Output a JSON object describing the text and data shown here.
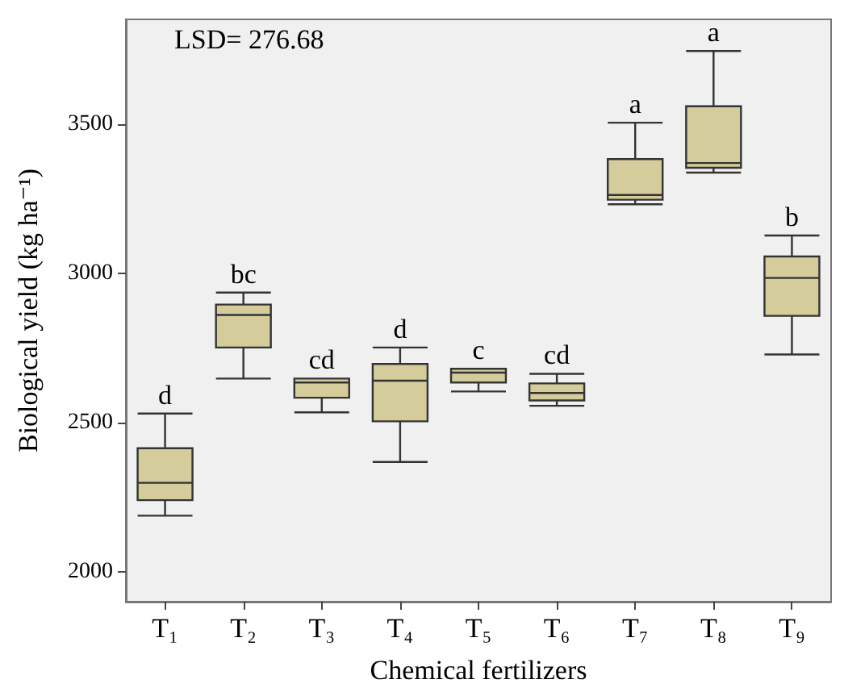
{
  "chart_data": {
    "type": "box",
    "xlabel": "Chemical fertilizers",
    "ylabel": "Biological yield (kg ha⁻¹)",
    "categories": [
      "T₁",
      "T₂",
      "T₃",
      "T₄",
      "T₅",
      "T₆",
      "T₇",
      "T₈",
      "T₉"
    ],
    "color": "#d4cd9b",
    "boxes": [
      {
        "low": 2188,
        "q1": 2240,
        "median": 2298,
        "q3": 2414,
        "high": 2530
      },
      {
        "low": 2647,
        "q1": 2751,
        "median": 2860,
        "q3": 2895,
        "high": 2935
      },
      {
        "low": 2534,
        "q1": 2583,
        "median": 2634,
        "q3": 2647,
        "high": 2647
      },
      {
        "low": 2368,
        "q1": 2504,
        "median": 2640,
        "q3": 2696,
        "high": 2751
      },
      {
        "low": 2604,
        "q1": 2634,
        "median": 2667,
        "q3": 2680,
        "high": 2680
      },
      {
        "low": 2556,
        "q1": 2574,
        "median": 2599,
        "q3": 2631,
        "high": 2663
      },
      {
        "low": 3231,
        "q1": 3246,
        "median": 3262,
        "q3": 3382,
        "high": 3504
      },
      {
        "low": 3337,
        "q1": 3353,
        "median": 3369,
        "q3": 3559,
        "high": 3744
      },
      {
        "low": 2728,
        "q1": 2857,
        "median": 2984,
        "q3": 3056,
        "high": 3126
      }
    ],
    "ylim": [
      1900,
      3850
    ],
    "yticks": [
      2000,
      2500,
      3000,
      3500
    ],
    "grid": false,
    "annotations": [
      "LSD= 276.68",
      {
        "text": "d",
        "x": "T₁",
        "y": 2530
      },
      {
        "text": "bc",
        "x": "T₂",
        "y": 2935
      },
      {
        "text": "cd",
        "x": "T₃",
        "y": 2647
      },
      {
        "text": "d",
        "x": "T₄",
        "y": 2751
      },
      {
        "text": "c",
        "x": "T₅",
        "y": 2680
      },
      {
        "text": "cd",
        "x": "T₆",
        "y": 2663
      },
      {
        "text": "a",
        "x": "T₇",
        "y": 3504
      },
      {
        "text": "a",
        "x": "T₈",
        "y": 3744
      },
      {
        "text": "b",
        "x": "T₉",
        "y": 3126
      }
    ]
  }
}
